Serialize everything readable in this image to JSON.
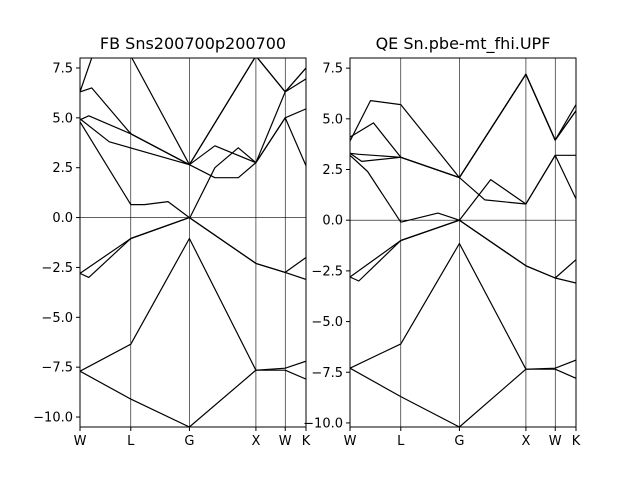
{
  "colors": {
    "line": "#000000",
    "frame": "#000000",
    "background": "#ffffff"
  },
  "chart_data": [
    {
      "type": "line",
      "title": "FB Sns200700p200700",
      "xlabel": "",
      "ylabel": "",
      "x_ticks": [
        "W",
        "L",
        "G",
        "X",
        "W",
        "K"
      ],
      "x_tick_positions": [
        0,
        0.866,
        1.866,
        3.0,
        3.5,
        3.854
      ],
      "xlim": [
        0,
        3.854
      ],
      "ylim": [
        -10.5,
        8.0
      ],
      "y_ticks": [
        -10.0,
        -7.5,
        -5.0,
        -2.5,
        0.0,
        2.5,
        5.0,
        7.5
      ],
      "y_tick_labels": [
        "−10.0",
        "−7.5",
        "−5.0",
        "−2.5",
        "0.0",
        "2.5",
        "5.0",
        "7.5"
      ],
      "grid": "vertical lines at high-symmetry points; horizontal line at 0",
      "series": [
        {
          "x": [
            0,
            0.866,
            1.866,
            3.0,
            3.5,
            3.854
          ],
          "y": [
            -7.7,
            -9.1,
            -10.5,
            -7.65,
            -7.65,
            -8.1
          ]
        },
        {
          "x": [
            0,
            0.866,
            1.866,
            3.0,
            3.5,
            3.854
          ],
          "y": [
            -7.7,
            -6.35,
            -1.05,
            -7.65,
            -7.55,
            -7.2
          ]
        },
        {
          "x": [
            0,
            0.15,
            0.866,
            1.866,
            3.0,
            3.5,
            3.854
          ],
          "y": [
            -2.8,
            -3.0,
            -1.05,
            0.0,
            -2.3,
            -2.75,
            -3.1
          ]
        },
        {
          "x": [
            0,
            0.866,
            1.866,
            3.0,
            3.5,
            3.854
          ],
          "y": [
            -2.8,
            -1.05,
            0.0,
            -2.3,
            -2.75,
            -2.0
          ]
        },
        {
          "x": [
            0,
            0.866,
            1.1,
            1.5,
            1.866
          ],
          "y": [
            4.8,
            0.65,
            0.65,
            0.8,
            0.0
          ]
        },
        {
          "x": [
            0,
            0.15,
            0.866,
            1.866,
            2.3,
            2.7,
            3.0,
            3.5,
            3.854
          ],
          "y": [
            4.9,
            5.1,
            4.2,
            2.65,
            2.0,
            2.0,
            2.75,
            6.3,
            7.5
          ]
        },
        {
          "x": [
            0,
            0.2,
            0.866,
            1.866,
            3.0,
            3.5,
            3.854
          ],
          "y": [
            6.3,
            6.5,
            4.2,
            2.65,
            8.1,
            6.3,
            6.95
          ]
        },
        {
          "x": [
            1.866,
            2.3,
            2.7,
            3.0,
            3.5,
            3.854
          ],
          "y": [
            -0.05,
            2.5,
            3.5,
            2.75,
            5.0,
            5.45
          ]
        },
        {
          "x": [
            0,
            0.5,
            1.866,
            2.3,
            3.0,
            3.5,
            3.854
          ],
          "y": [
            4.95,
            3.8,
            2.65,
            3.6,
            2.75,
            5.0,
            2.6
          ]
        },
        {
          "x": [
            0,
            0.2,
            0.55,
            0.866,
            1.866,
            3.0,
            3.5,
            3.854
          ],
          "y": [
            6.3,
            8.0,
            8.2,
            8.1,
            2.65,
            8.1,
            6.3,
            7.5
          ]
        }
      ]
    },
    {
      "type": "line",
      "title": "QE Sn.pbe-mt_fhi.UPF",
      "xlabel": "",
      "ylabel": "",
      "x_ticks": [
        "W",
        "L",
        "G",
        "X",
        "W",
        "K"
      ],
      "x_tick_positions": [
        0,
        0.866,
        1.866,
        3.0,
        3.5,
        3.854
      ],
      "xlim": [
        0,
        3.854
      ],
      "ylim": [
        -10.2,
        8.0
      ],
      "y_ticks": [
        -10.0,
        -7.5,
        -5.0,
        -2.5,
        0.0,
        2.5,
        5.0,
        7.5
      ],
      "y_tick_labels": [
        "−10.0",
        "−7.5",
        "−5.0",
        "−2.5",
        "0.0",
        "2.5",
        "5.0",
        "7.5"
      ],
      "grid": "vertical lines at high-symmetry points; horizontal line at 0",
      "series": [
        {
          "x": [
            0,
            0.866,
            1.866,
            3.0,
            3.5,
            3.854
          ],
          "y": [
            -7.3,
            -8.7,
            -10.2,
            -7.35,
            -7.35,
            -7.8
          ]
        },
        {
          "x": [
            0,
            0.866,
            1.866,
            3.0,
            3.5,
            3.854
          ],
          "y": [
            -7.3,
            -6.1,
            -1.15,
            -7.35,
            -7.3,
            -6.9
          ]
        },
        {
          "x": [
            0,
            0.15,
            0.866,
            1.866,
            3.0,
            3.5,
            3.854
          ],
          "y": [
            -2.8,
            -3.0,
            -1.0,
            0.0,
            -2.25,
            -2.85,
            -3.1
          ]
        },
        {
          "x": [
            0,
            0.866,
            1.866,
            3.0,
            3.5,
            3.854
          ],
          "y": [
            -2.8,
            -1.0,
            0.0,
            -2.25,
            -2.85,
            -1.95
          ]
        },
        {
          "x": [
            0,
            0.3,
            0.866,
            1.5,
            1.866
          ],
          "y": [
            3.2,
            2.4,
            -0.1,
            0.35,
            0.0
          ]
        },
        {
          "x": [
            0,
            0.15,
            0.866,
            1.866,
            2.3,
            3.0,
            3.5,
            3.854
          ],
          "y": [
            3.3,
            3.25,
            3.1,
            2.1,
            1.0,
            0.8,
            3.2,
            3.2
          ]
        },
        {
          "x": [
            0,
            0.2,
            0.866,
            1.866,
            3.0,
            3.5,
            3.854
          ],
          "y": [
            3.3,
            2.9,
            3.1,
            2.1,
            7.2,
            3.95,
            5.4
          ]
        },
        {
          "x": [
            1.866,
            2.4,
            3.0,
            3.5,
            3.854
          ],
          "y": [
            0.0,
            2.0,
            0.8,
            3.2,
            1.05
          ]
        },
        {
          "x": [
            0,
            0.35,
            0.866,
            1.866,
            3.0,
            3.5,
            3.854
          ],
          "y": [
            3.9,
            5.9,
            5.7,
            2.1,
            7.2,
            3.95,
            5.7
          ]
        },
        {
          "x": [
            0,
            0.4,
            0.866,
            1.866,
            3.0,
            3.5,
            3.854
          ],
          "y": [
            4.1,
            4.8,
            3.1,
            2.1,
            7.2,
            3.95,
            5.4
          ]
        }
      ]
    }
  ]
}
